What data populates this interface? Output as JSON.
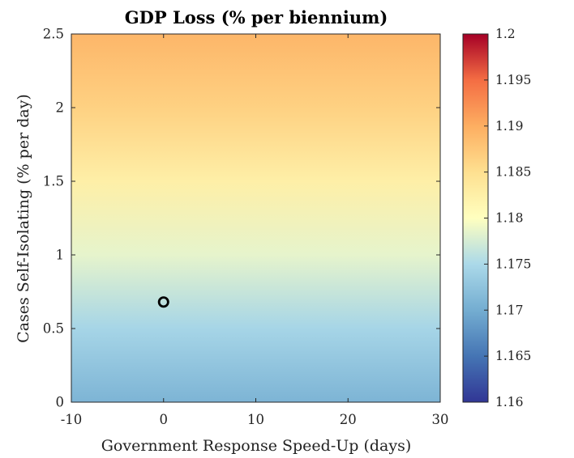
{
  "chart_data": {
    "type": "heatmap",
    "title": "GDP Loss (% per biennium)",
    "xlabel": "Government Response Speed-Up (days)",
    "ylabel": "Cases Self-Isolating (% per day)",
    "xlim": [
      -10,
      30
    ],
    "ylim": [
      0,
      2.5
    ],
    "x_ticks": [
      "-10",
      "0",
      "10",
      "20",
      "30"
    ],
    "y_ticks": [
      "0",
      "0.5",
      "1",
      "1.5",
      "2",
      "2.5"
    ],
    "x_tick_values": [
      -10,
      0,
      10,
      20,
      30
    ],
    "y_tick_values": [
      0,
      0.5,
      1,
      1.5,
      2,
      2.5
    ],
    "colorbar": {
      "range": [
        1.16,
        1.2
      ],
      "ticks": [
        "1.16",
        "1.165",
        "1.17",
        "1.175",
        "1.18",
        "1.185",
        "1.19",
        "1.195",
        "1.2"
      ],
      "tick_values": [
        1.16,
        1.165,
        1.17,
        1.175,
        1.18,
        1.185,
        1.19,
        1.195,
        1.2
      ],
      "colormap": "red-yellow-blue (diverging)"
    },
    "z_profile": {
      "y": [
        0,
        0.5,
        1,
        1.5,
        2,
        2.5
      ],
      "z": [
        1.1708,
        1.1745,
        1.1785,
        1.1826,
        1.1865,
        1.1892
      ]
    },
    "marker": {
      "x": 0,
      "y": 0.68,
      "shape": "open circle"
    },
    "grid": false
  }
}
